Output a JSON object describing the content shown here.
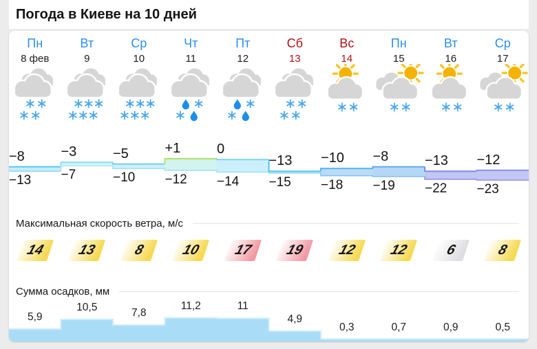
{
  "page": {
    "title": "Погода в Киеве на 10 дней"
  },
  "sections": {
    "wind_label": "Максимальная скорость ветра, м/с",
    "precip_label": "Сумма осадков, мм"
  },
  "colors": {
    "cloud": "#d6d6d6",
    "sun": "#f5b301",
    "sun_ray": "#fbc525",
    "snowflake": "#47a6ec",
    "raindrop": "#1d8eea",
    "precip_fill": "#a9ddf7",
    "precip_edge": "#cdebfb",
    "weekday_blue": "#2b8fe9",
    "weekend_red": "#b01114"
  },
  "days": [
    {
      "weekday": "Пн",
      "date": "8 фев",
      "weekend": false,
      "icon": "clouds",
      "icon_name": "cloud-snow-icon",
      "glyphs": "22",
      "t_max_label": "−8",
      "t_min_label": "−13",
      "wind": {
        "value": "14",
        "color": "#f6d952"
      },
      "precip_label": "5,9"
    },
    {
      "weekday": "Вт",
      "date": "9",
      "weekend": false,
      "icon": "clouds",
      "icon_name": "cloud-snow-icon",
      "glyphs": "33",
      "t_max_label": "−3",
      "t_min_label": "−7",
      "wind": {
        "value": "13",
        "color": "#f6d952"
      },
      "precip_label": "10,5"
    },
    {
      "weekday": "Ср",
      "date": "10",
      "weekend": false,
      "icon": "clouds",
      "icon_name": "cloud-snow-icon",
      "glyphs": "33",
      "t_max_label": "−5",
      "t_min_label": "−10",
      "wind": {
        "value": "8",
        "color": "#f6d952"
      },
      "precip_label": "7,8"
    },
    {
      "weekday": "Чт",
      "date": "11",
      "weekend": false,
      "icon": "clouds",
      "icon_name": "cloud-sleet-icon",
      "glyphs": "sleet",
      "t_max_label": "+1",
      "t_min_label": "−12",
      "wind": {
        "value": "10",
        "color": "#f6d952"
      },
      "precip_label": "11,2"
    },
    {
      "weekday": "Пт",
      "date": "12",
      "weekend": false,
      "icon": "clouds",
      "icon_name": "cloud-sleet-icon",
      "glyphs": "sleet",
      "t_max_label": "0",
      "t_min_label": "−14",
      "wind": {
        "value": "17",
        "color": "#f29aa4"
      },
      "precip_label": "11"
    },
    {
      "weekday": "Сб",
      "date": "13",
      "weekend": true,
      "icon": "clouds",
      "icon_name": "cloud-snow-icon",
      "glyphs": "22",
      "t_max_label": "−13",
      "t_min_label": "−15",
      "wind": {
        "value": "19",
        "color": "#f29aa4"
      },
      "precip_label": "4,9"
    },
    {
      "weekday": "Вс",
      "date": "14",
      "weekend": true,
      "icon": "sun-cloud",
      "icon_name": "sun-cloud-snow-icon",
      "glyphs": "2",
      "t_max_label": "−10",
      "t_min_label": "−18",
      "wind": {
        "value": "12",
        "color": "#f6d952"
      },
      "precip_label": "0,3"
    },
    {
      "weekday": "Пн",
      "date": "15",
      "weekend": false,
      "icon": "sun-clouds",
      "icon_name": "sun-clouds-snow-icon",
      "glyphs": "2",
      "t_max_label": "−8",
      "t_min_label": "−19",
      "wind": {
        "value": "12",
        "color": "#f6d952"
      },
      "precip_label": "0,7"
    },
    {
      "weekday": "Вт",
      "date": "16",
      "weekend": false,
      "icon": "sun-cloud",
      "icon_name": "sun-cloud-snow-icon",
      "glyphs": "2",
      "t_max_label": "−13",
      "t_min_label": "−22",
      "wind": {
        "value": "6",
        "color": "#dedee1"
      },
      "precip_label": "0,9"
    },
    {
      "weekday": "Ср",
      "date": "17",
      "weekend": false,
      "icon": "sun-clouds",
      "icon_name": "sun-clouds-snow-icon",
      "glyphs": "2",
      "t_max_label": "−12",
      "t_min_label": "−23",
      "wind": {
        "value": "8",
        "color": "#f6d952"
      },
      "precip_label": "0,5"
    }
  ],
  "chart_data": [
    {
      "type": "area",
      "title": "Температура, °C",
      "categories": [
        "8 фев",
        "9",
        "10",
        "11",
        "12",
        "13",
        "14",
        "15",
        "16",
        "17"
      ],
      "series": [
        {
          "name": "max",
          "values": [
            -8,
            -3,
            -5,
            1,
            0,
            -13,
            -10,
            -8,
            -13,
            -12
          ]
        },
        {
          "name": "min",
          "values": [
            -13,
            -7,
            -10,
            -12,
            -14,
            -15,
            -18,
            -19,
            -22,
            -23
          ]
        }
      ],
      "band_colors": {
        "fills": [
          "#c9ebfa",
          "#d8f2fc",
          "#d1effb",
          "#d2f3f0",
          "#cdeffb",
          "#c5e9fa",
          "#badcf8",
          "#b5d8f7",
          "#bfc7f3",
          "#c2c8f4"
        ],
        "tops": [
          "#57c9f1",
          "#8adef6",
          "#6fd3f3",
          "#b2e262",
          "#7fd6f0",
          "#56c4f0",
          "#57b2ee",
          "#61a9ee",
          "#7e8cec",
          "#8691ee"
        ],
        "bottoms": [
          "#8fd9f6",
          "#aee6f9",
          "#a0e1f8",
          "#9fe3ef",
          "#9bdff7",
          "#8fd3f5",
          "#86c2f2",
          "#83bcf1",
          "#9b8dec",
          "#a192ee"
        ]
      }
    },
    {
      "type": "area",
      "title": "Сумма осадков, мм",
      "categories": [
        "8 фев",
        "9",
        "10",
        "11",
        "12",
        "13",
        "14",
        "15",
        "16",
        "17"
      ],
      "values": [
        5.9,
        10.5,
        7.8,
        11.2,
        11,
        4.9,
        0.3,
        0.7,
        0.9,
        0.5
      ]
    },
    {
      "type": "table",
      "title": "Максимальная скорость ветра, м/с",
      "categories": [
        "8 фев",
        "9",
        "10",
        "11",
        "12",
        "13",
        "14",
        "15",
        "16",
        "17"
      ],
      "values": [
        14,
        13,
        8,
        10,
        17,
        19,
        12,
        12,
        6,
        8
      ]
    }
  ]
}
